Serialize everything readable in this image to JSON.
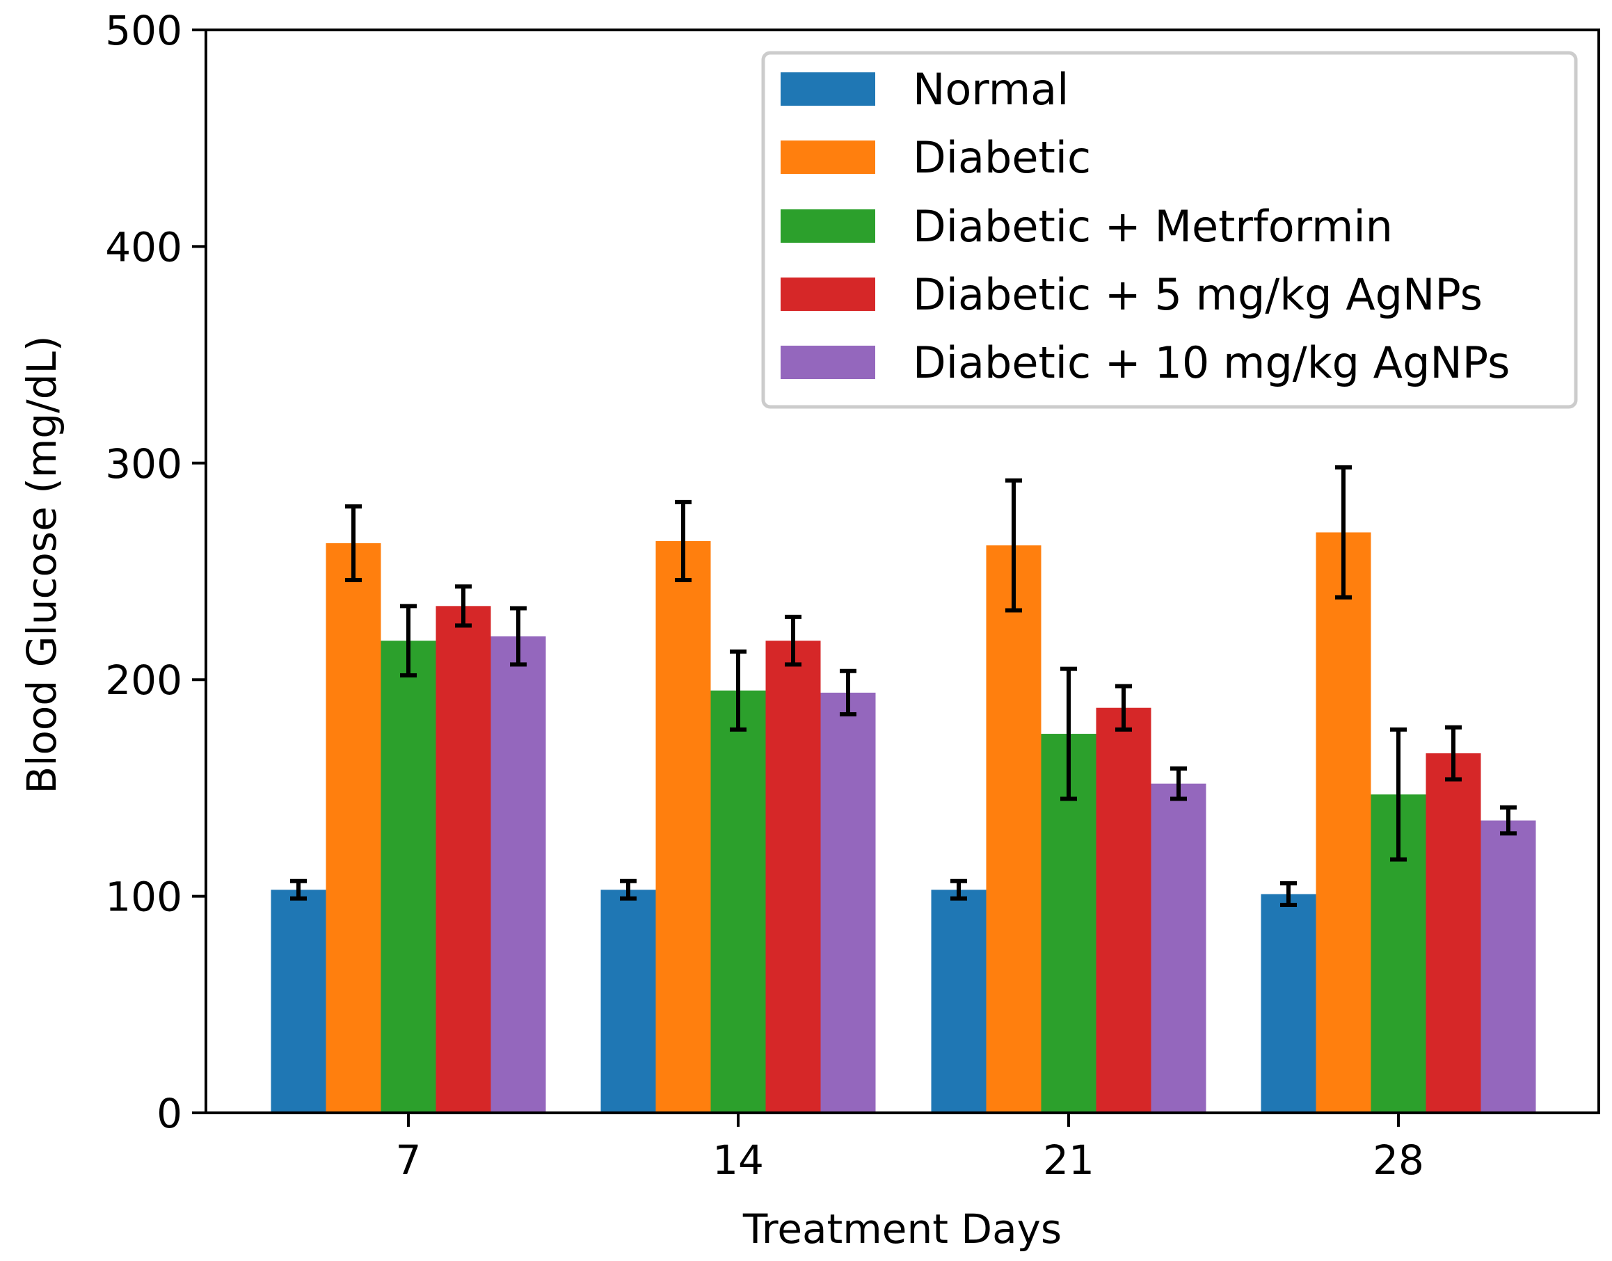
{
  "chart_data": {
    "type": "bar",
    "title": "",
    "xlabel": "Treatment Days",
    "ylabel": "Blood Glucose (mg/dL)",
    "categories": [
      "7",
      "14",
      "21",
      "28"
    ],
    "ylim": [
      0,
      500
    ],
    "yticks": [
      "0",
      "100",
      "200",
      "300",
      "400",
      "500"
    ],
    "grid": false,
    "legend_position": "top-right",
    "series": [
      {
        "name": "Normal",
        "color": "#1f77b4",
        "values": [
          103,
          103,
          103,
          101
        ],
        "errors": [
          4,
          4,
          4,
          5
        ]
      },
      {
        "name": "Diabetic",
        "color": "#ff7f0e",
        "values": [
          263,
          264,
          262,
          268
        ],
        "errors": [
          17,
          18,
          30,
          30
        ]
      },
      {
        "name": "Diabetic + Metrformin",
        "color": "#2ca02c",
        "values": [
          218,
          195,
          175,
          147
        ],
        "errors": [
          16,
          18,
          30,
          30
        ]
      },
      {
        "name": "Diabetic + 5 mg/kg AgNPs",
        "color": "#d62728",
        "values": [
          234,
          218,
          187,
          166
        ],
        "errors": [
          9,
          11,
          10,
          12
        ]
      },
      {
        "name": "Diabetic + 10 mg/kg AgNPs",
        "color": "#9467bd",
        "values": [
          220,
          194,
          152,
          135
        ],
        "errors": [
          13,
          10,
          7,
          6
        ]
      }
    ]
  }
}
